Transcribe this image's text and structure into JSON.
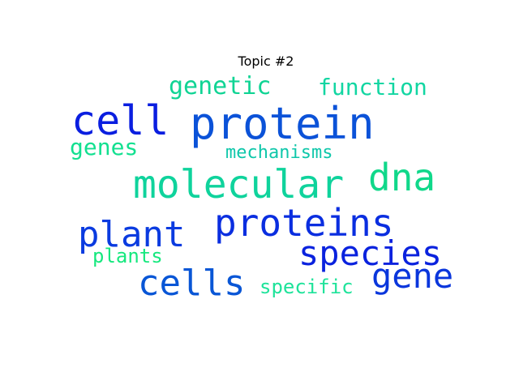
{
  "title": "Topic #2",
  "words": [
    {
      "text": "protein",
      "color": "#0b52d8"
    },
    {
      "text": "cell",
      "color": "#0a1ee0"
    },
    {
      "text": "molecular",
      "color": "#0fd39c"
    },
    {
      "text": "proteins",
      "color": "#0a2ee0"
    },
    {
      "text": "dna",
      "color": "#10d88a"
    },
    {
      "text": "plant",
      "color": "#0a3be0"
    },
    {
      "text": "cells",
      "color": "#0956d6"
    },
    {
      "text": "species",
      "color": "#0a22de"
    },
    {
      "text": "gene",
      "color": "#0a36dc"
    },
    {
      "text": "genetic",
      "color": "#10d494"
    },
    {
      "text": "function",
      "color": "#12d6a2"
    },
    {
      "text": "genes",
      "color": "#12e090"
    },
    {
      "text": "mechanisms",
      "color": "#0ec7aa"
    },
    {
      "text": "plants",
      "color": "#16e87e"
    },
    {
      "text": "specific",
      "color": "#1ee39a"
    }
  ]
}
